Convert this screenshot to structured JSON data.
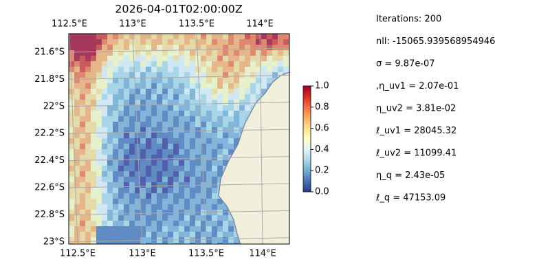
{
  "map": {
    "title": "2026-04-01T02:00:00Z",
    "lon_ticks_top": [
      "112.5°E",
      "113°E",
      "113.5°E",
      "114°E"
    ],
    "lon_ticks_bottom": [
      "112.5°E",
      "113°E",
      "113.5°E",
      "114°E"
    ],
    "lat_ticks": [
      "21.6°S",
      "21.8°S",
      "22°S",
      "22.2°S",
      "22.4°S",
      "22.6°S",
      "22.8°S",
      "23°S"
    ],
    "colorbar": {
      "ylim": [
        0,
        1
      ],
      "yticks": [
        {
          "value": 0,
          "label": "0.0"
        },
        0.2,
        0.4,
        0.6,
        0.8,
        {
          "value": 1,
          "label": "1.0"
        }
      ]
    },
    "stats": [
      "Iterations: 200",
      "nll: -15065.939568954946",
      "σ = 9.87e-07",
      ",η_uv1 = 2.07e-01",
      "η_uv2 = 3.81e-02",
      "ℓ_uv1 = 28045.32",
      "ℓ_uv2 = 11099.41",
      "η_q = 2.43e-05",
      "ℓ_q = 47153.09"
    ]
  }
}
